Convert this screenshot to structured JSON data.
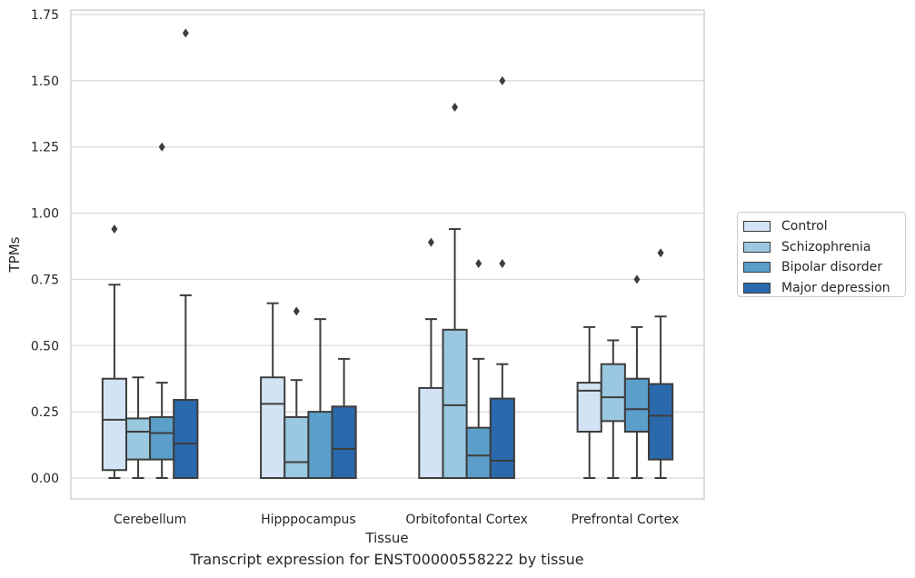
{
  "chart_data": {
    "type": "boxplot",
    "title": "Transcript expression for ENST00000558222 by tissue",
    "xlabel": "Tissue",
    "ylabel": "TPMs",
    "ylim": [
      -0.08,
      1.76
    ],
    "yticks": [
      "0.00",
      "0.25",
      "0.50",
      "0.75",
      "1.00",
      "1.25",
      "1.50",
      "1.75"
    ],
    "categories": [
      "Cerebellum",
      "Hipppocampus",
      "Orbitofontal Cortex",
      "Prefrontal Cortex"
    ],
    "grid": "horizontal",
    "legend_position": "right",
    "series": [
      {
        "name": "Control",
        "color": "#d2e3f3",
        "boxes": [
          {
            "whislo": 0.0,
            "q1": 0.03,
            "med": 0.22,
            "q3": 0.375,
            "whishi": 0.73,
            "fliers": [
              0.94
            ]
          },
          {
            "whislo": 0.0,
            "q1": 0.0,
            "med": 0.28,
            "q3": 0.38,
            "whishi": 0.66,
            "fliers": []
          },
          {
            "whislo": 0.0,
            "q1": 0.0,
            "med": 0.0,
            "q3": 0.34,
            "whishi": 0.6,
            "fliers": [
              0.89
            ]
          },
          {
            "whislo": 0.0,
            "q1": 0.175,
            "med": 0.33,
            "q3": 0.36,
            "whishi": 0.57,
            "fliers": []
          }
        ]
      },
      {
        "name": "Schizophrenia",
        "color": "#9ac8e0",
        "boxes": [
          {
            "whislo": 0.0,
            "q1": 0.07,
            "med": 0.175,
            "q3": 0.225,
            "whishi": 0.38,
            "fliers": []
          },
          {
            "whislo": 0.0,
            "q1": 0.0,
            "med": 0.06,
            "q3": 0.23,
            "whishi": 0.37,
            "fliers": [
              0.63
            ]
          },
          {
            "whislo": 0.0,
            "q1": 0.0,
            "med": 0.275,
            "q3": 0.56,
            "whishi": 0.94,
            "fliers": [
              1.4
            ]
          },
          {
            "whislo": 0.0,
            "q1": 0.215,
            "med": 0.305,
            "q3": 0.43,
            "whishi": 0.52,
            "fliers": []
          }
        ]
      },
      {
        "name": "Bipolar disorder",
        "color": "#5a9ec9",
        "boxes": [
          {
            "whislo": 0.0,
            "q1": 0.07,
            "med": 0.17,
            "q3": 0.23,
            "whishi": 0.36,
            "fliers": [
              1.25
            ]
          },
          {
            "whislo": 0.0,
            "q1": 0.0,
            "med": 0.0,
            "q3": 0.25,
            "whishi": 0.6,
            "fliers": []
          },
          {
            "whislo": 0.0,
            "q1": 0.0,
            "med": 0.085,
            "q3": 0.19,
            "whishi": 0.45,
            "fliers": [
              0.81
            ]
          },
          {
            "whislo": 0.0,
            "q1": 0.175,
            "med": 0.26,
            "q3": 0.375,
            "whishi": 0.57,
            "fliers": [
              0.75
            ]
          }
        ]
      },
      {
        "name": "Major depression",
        "color": "#2a69ac",
        "boxes": [
          {
            "whislo": 0.0,
            "q1": 0.0,
            "med": 0.13,
            "q3": 0.295,
            "whishi": 0.69,
            "fliers": [
              1.68
            ]
          },
          {
            "whislo": 0.0,
            "q1": 0.0,
            "med": 0.11,
            "q3": 0.27,
            "whishi": 0.45,
            "fliers": []
          },
          {
            "whislo": 0.0,
            "q1": 0.0,
            "med": 0.065,
            "q3": 0.3,
            "whishi": 0.43,
            "fliers": [
              0.81,
              1.5
            ]
          },
          {
            "whislo": 0.0,
            "q1": 0.07,
            "med": 0.235,
            "q3": 0.355,
            "whishi": 0.61,
            "fliers": [
              0.85
            ]
          }
        ]
      }
    ]
  }
}
